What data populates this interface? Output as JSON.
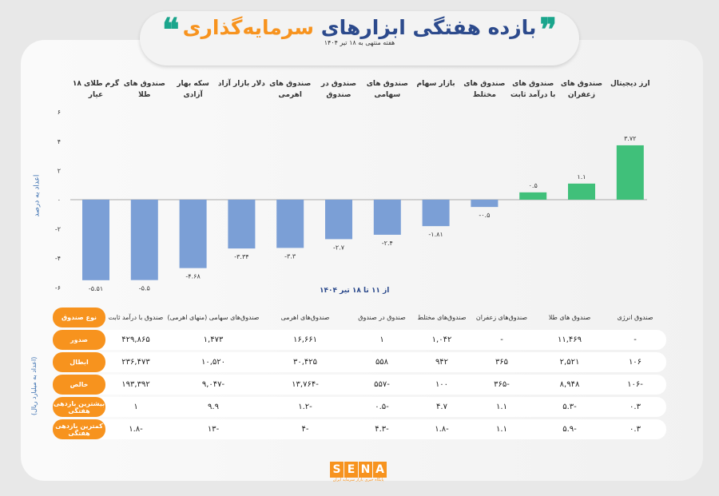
{
  "header": {
    "title_part1": "بازده هفتگی ابزارهای",
    "title_part2": "سرمایه‌گذاری",
    "subtitle": "هفته منتهی به ۱۸ تیر ۱۴۰۴",
    "quote_left": "❝",
    "quote_right": "❞"
  },
  "chart_data": {
    "type": "bar",
    "categories": [
      "گرم طلای ۱۸ عیار",
      "صندوق های طلا",
      "سکه بهار آزادی",
      "دلار بازار آزاد",
      "صندوق های اهرمی",
      "صندوق در صندوق",
      "صندوق های سهامی",
      "بازار سهام",
      "صندوق های مختلط",
      "صندوق های با درآمد ثابت",
      "صندوق های زعفران",
      "ارز دیجیتال"
    ],
    "values": [
      -5.51,
      -5.5,
      -4.68,
      -3.34,
      -3.3,
      -2.7,
      -2.4,
      -1.81,
      -0.5,
      0.5,
      1.1,
      3.72
    ],
    "data_labels": [
      "-۵.۵۱",
      "-۵.۵",
      "-۴.۶۸",
      "-۳.۳۴",
      "-۳.۳",
      "-۲.۷",
      "-۲.۴",
      "-۱.۸۱",
      "-۰.۵",
      "۰.۵",
      "۱.۱",
      "۳.۷۲"
    ],
    "ylabel": "اعداد به درصد",
    "xlabel": "از ۱۱ تا ۱۸ تیر ۱۴۰۴",
    "ylim": [
      -6,
      6
    ],
    "yticks": [
      6,
      4,
      2,
      0,
      -2,
      -4,
      -6
    ],
    "ytick_labels": [
      "۶",
      "۴",
      "۲",
      "۰",
      "-۲",
      "-۴",
      "-۶"
    ],
    "grid": false,
    "colors": {
      "negative": "#7b9fd6",
      "positive": "#40c07a",
      "baseline": "#aaaaaa"
    }
  },
  "table": {
    "unit_label": "(اعداد به میلیارد ریال)",
    "corner": "نوع صندوق",
    "columns": [
      "صندوق با درآمد ثابت",
      "صندوق‌های سهامی (منهای اهرمی)",
      "صندوق‌های اهرمی",
      "صندوق در صندوق",
      "صندوق‌های مختلط",
      "صندوق‌های زعفران",
      "صندوق های طلا",
      "صندوق انرژی"
    ],
    "rows": [
      {
        "label": "صدور",
        "cells": [
          "۴۲۹,۸۶۵",
          "۱,۴۷۳",
          "۱۶,۶۶۱",
          "۱",
          "۱,۰۴۲",
          "-",
          "۱۱,۴۶۹",
          "-"
        ]
      },
      {
        "label": "ابطال",
        "cells": [
          "۲۳۶,۴۷۳",
          "۱۰,۵۲۰",
          "۳۰,۴۲۵",
          "۵۵۸",
          "۹۴۲",
          "۳۶۵",
          "۲,۵۲۱",
          "۱۰۶"
        ]
      },
      {
        "label": "خالص",
        "cells": [
          "۱۹۳,۳۹۲",
          "-۹,۰۴۷",
          "-۱۳,۷۶۴",
          "-۵۵۷",
          "۱۰۰",
          "-۳۶۵",
          "۸,۹۴۸",
          "-۱۰۶"
        ]
      },
      {
        "label": "بیشترین بازدهی هفتگی",
        "cells": [
          "۱",
          "۹.۹",
          "-۱.۲",
          "-۰.۵",
          "۴.۷",
          "۱.۱",
          "-۵.۳",
          "۰.۳"
        ]
      },
      {
        "label": "کمترین بازدهی هفتگی",
        "cells": [
          "-۱.۸",
          "-۱۳",
          "-۴",
          "-۴.۳",
          "-۱.۸",
          "۱.۱",
          "-۵.۹",
          "۰.۳"
        ]
      }
    ]
  },
  "footer": {
    "logo_letters": [
      "S",
      "E",
      "N",
      "A"
    ],
    "tagline": "پایگاه خبری بازار سرمایه ایران"
  },
  "colors": {
    "accent": "#f7931e",
    "title_blue": "#2c4a8c",
    "quote_teal": "#1aa58c"
  }
}
